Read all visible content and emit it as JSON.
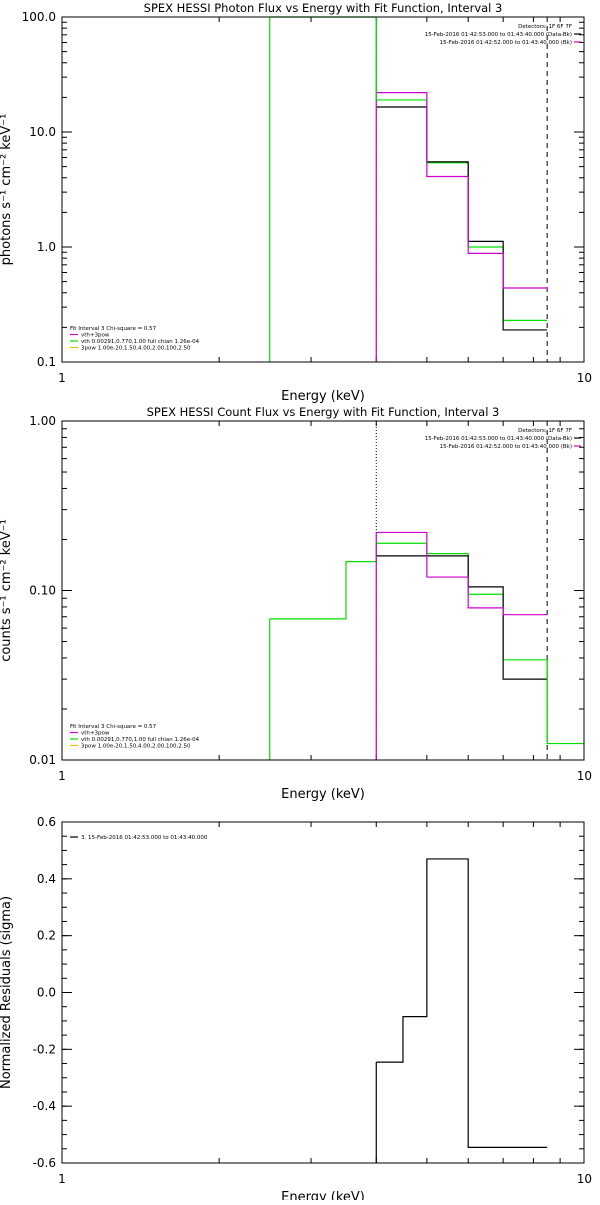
{
  "chart_data": [
    {
      "type": "line",
      "title": "SPEX HESSI Photon Flux vs Energy with Fit Function, Interval 3",
      "xlabel": "Energy (keV)",
      "ylabel": "photons s⁻¹ cm⁻² keV⁻¹",
      "xscale": "log",
      "yscale": "log",
      "xlim": [
        1,
        10
      ],
      "ylim": [
        0.1,
        100
      ],
      "x_ticks": [
        {
          "v": 1,
          "label": "1"
        },
        {
          "v": 10,
          "label": "10"
        }
      ],
      "y_ticks": [
        {
          "v": 0.1,
          "label": "0.1"
        },
        {
          "v": 1,
          "label": "1.0"
        },
        {
          "v": 10,
          "label": "10.0"
        },
        {
          "v": 100,
          "label": "100.0"
        }
      ],
      "vlines": [
        {
          "x": 4.0,
          "style": "dotted",
          "color": "#000000"
        },
        {
          "x": 8.5,
          "style": "dashed",
          "color": "#000000"
        }
      ],
      "series": [
        {
          "color": "#00e000",
          "edges": [
            2.5,
            4.0,
            4.5,
            5.0,
            6.0,
            7.0,
            8.0,
            8.5
          ],
          "values": [
            100,
            19,
            19,
            5.4,
            1.0,
            0.23,
            0.23
          ]
        },
        {
          "color": "#000000",
          "edges": [
            4.0,
            4.5,
            5.0,
            6.0,
            7.0,
            8.0,
            8.5
          ],
          "values": [
            16.5,
            16.5,
            5.5,
            1.12,
            0.19,
            0.19
          ]
        },
        {
          "color": "#d000d0",
          "edges": [
            4.0,
            4.5,
            5.0,
            6.0,
            7.0,
            8.0,
            8.5
          ],
          "values": [
            22,
            22,
            4.1,
            0.88,
            0.44,
            0.44
          ]
        }
      ],
      "vsegs": [
        {
          "x": 2.5,
          "y0": 0.1,
          "y1": 100,
          "color": "#00e000"
        },
        {
          "x": 4.0,
          "y0": 0.1,
          "y1": 22,
          "color": "#d000d0"
        },
        {
          "x": 4.0,
          "y0": 19,
          "y1": 100,
          "color": "#00e000"
        }
      ],
      "legend_right": {
        "header": "Detectors: 1F 6F 7F",
        "entries": [
          {
            "text": "15-Feb-2016 01:42:53.000 to 01:43:40.000 (Data-Bk)",
            "color": "#000000"
          },
          {
            "text": "15-Feb-2016 01:42:52.000 to 01:43:40.000 (Bk)",
            "color": "#d000d0"
          }
        ]
      },
      "legend_left": {
        "header": "Fit Interval 3   Chi-square = 0.57",
        "entries": [
          {
            "text": "vth+3pow",
            "color": "#d000d0"
          },
          {
            "text": "vth 0.00291,0.770,1.00  full chian 1.26e-04",
            "color": "#00e000"
          },
          {
            "text": "3pow 1.00e-20,1.50,4.00,2.00,100,2.50",
            "color": "#e0c000"
          }
        ]
      }
    },
    {
      "type": "line",
      "title": "SPEX HESSI Count Flux vs Energy with Fit Function, Interval 3",
      "xlabel": "Energy (keV)",
      "ylabel": "counts s⁻¹ cm⁻² keV⁻¹",
      "xscale": "log",
      "yscale": "log",
      "xlim": [
        1,
        10
      ],
      "ylim": [
        0.01,
        1
      ],
      "x_ticks": [
        {
          "v": 1,
          "label": "1"
        },
        {
          "v": 10,
          "label": "10"
        }
      ],
      "y_ticks": [
        {
          "v": 0.01,
          "label": "0.01"
        },
        {
          "v": 0.1,
          "label": "0.10"
        },
        {
          "v": 1,
          "label": "1.00"
        }
      ],
      "vlines": [
        {
          "x": 4.0,
          "style": "dotted",
          "color": "#000000"
        },
        {
          "x": 8.5,
          "style": "dashed",
          "color": "#000000"
        }
      ],
      "series": [
        {
          "color": "#00e000",
          "edges": [
            2.5,
            3.0,
            3.5,
            4.0,
            4.5,
            5.0,
            6.0,
            7.0,
            8.0,
            8.5,
            10.0
          ],
          "values": [
            0.068,
            0.068,
            0.148,
            0.19,
            0.19,
            0.165,
            0.095,
            0.039,
            0.039,
            0.0125
          ]
        },
        {
          "color": "#000000",
          "edges": [
            4.0,
            4.5,
            5.0,
            6.0,
            7.0,
            8.0,
            8.5
          ],
          "values": [
            0.16,
            0.16,
            0.16,
            0.105,
            0.03,
            0.03
          ]
        },
        {
          "color": "#d000d0",
          "edges": [
            4.0,
            4.5,
            5.0,
            6.0,
            7.0,
            8.0,
            8.5
          ],
          "values": [
            0.22,
            0.22,
            0.12,
            0.079,
            0.072,
            0.072
          ]
        }
      ],
      "vsegs": [
        {
          "x": 2.5,
          "y0": 0.01,
          "y1": 0.068,
          "color": "#00e000"
        },
        {
          "x": 4.0,
          "y0": 0.01,
          "y1": 0.22,
          "color": "#d000d0"
        },
        {
          "x": 8.5,
          "y0": 0.0125,
          "y1": 0.039,
          "color": "#00e000"
        }
      ],
      "legend_right": {
        "header": "Detectors: 1F 6F 7F",
        "entries": [
          {
            "text": "15-Feb-2016 01:42:53.000 to 01:43:40.000 (Data-Bk)",
            "color": "#000000"
          },
          {
            "text": "15-Feb-2016 01:42:52.000 to 01:43:40.000 (Bk)",
            "color": "#d000d0"
          }
        ]
      },
      "legend_left": {
        "header": "Fit Interval 3   Chi-square = 0.57",
        "entries": [
          {
            "text": "vth+3pow",
            "color": "#d000d0"
          },
          {
            "text": "vth 0.00291,0.770,1.00  full chian 1.26e-04",
            "color": "#00e000"
          },
          {
            "text": "3pow 1.00e-20,1.50,4.00,2.00,100,2.50",
            "color": "#e0c000"
          }
        ]
      }
    },
    {
      "type": "line",
      "title": "",
      "xlabel": "Energy (keV)",
      "ylabel": "Normalized Residuals (sigma)",
      "xscale": "log",
      "yscale": "linear",
      "xlim": [
        1,
        10
      ],
      "ylim": [
        -0.6,
        0.6
      ],
      "x_ticks": [
        {
          "v": 1,
          "label": "1"
        },
        {
          "v": 10,
          "label": "10"
        }
      ],
      "y_ticks": [
        {
          "v": -0.6,
          "label": "-0.6"
        },
        {
          "v": -0.4,
          "label": "-0.4"
        },
        {
          "v": -0.2,
          "label": "-0.2"
        },
        {
          "v": 0.0,
          "label": "0.0"
        },
        {
          "v": 0.2,
          "label": "0.2"
        },
        {
          "v": 0.4,
          "label": "0.4"
        },
        {
          "v": 0.6,
          "label": "0.6"
        }
      ],
      "vlines": [],
      "series": [
        {
          "color": "#000000",
          "edges": [
            4.0,
            4.5,
            5.0,
            6.0,
            7.0,
            8.5
          ],
          "values": [
            -0.245,
            -0.085,
            0.47,
            -0.545,
            -0.545
          ]
        }
      ],
      "vsegs": [
        {
          "x": 4.0,
          "y0": -0.6,
          "y1": -0.245,
          "color": "#000000"
        }
      ],
      "legend_right": null,
      "legend_left": {
        "header": "",
        "entries": [
          {
            "text": "3. 15-Feb-2016 01:42:53.000 to 01:43:40.000",
            "color": "#000000"
          }
        ]
      }
    }
  ]
}
